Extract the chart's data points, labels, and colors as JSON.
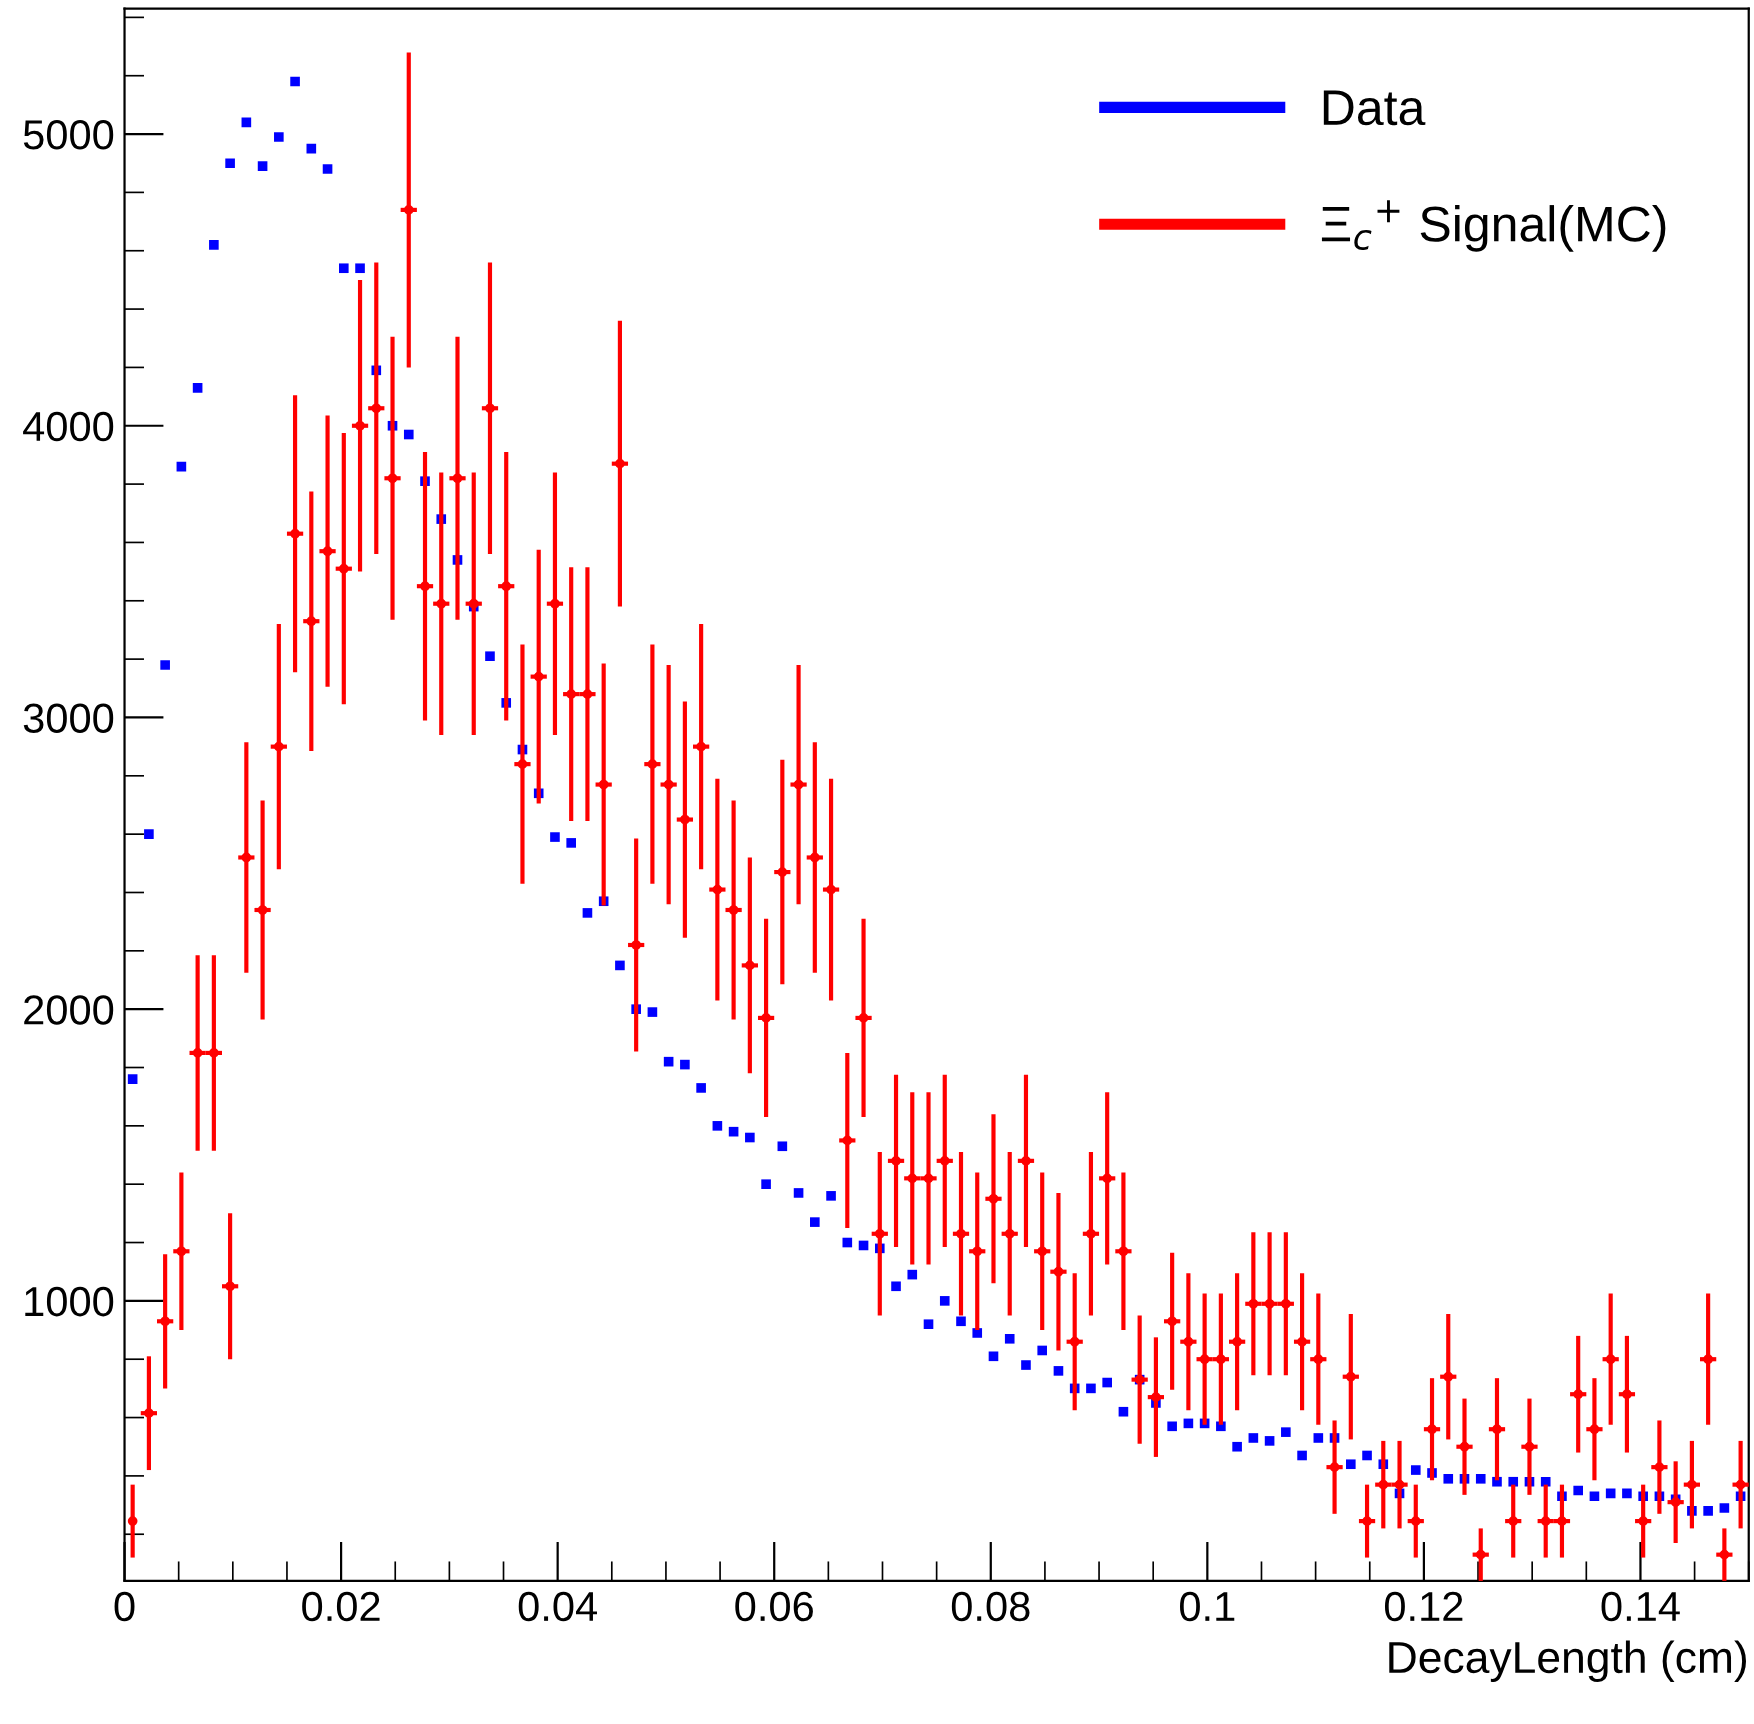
{
  "chart_data": {
    "type": "scatter",
    "xlabel": "DecayLength (cm)",
    "x": [
      0.00075,
      0.00225,
      0.00375,
      0.00525,
      0.00675,
      0.00825,
      0.00975,
      0.01125,
      0.01275,
      0.01425,
      0.01575,
      0.01725,
      0.01875,
      0.02025,
      0.02175,
      0.02325,
      0.02475,
      0.02625,
      0.02775,
      0.02925,
      0.03075,
      0.03225,
      0.03375,
      0.03525,
      0.03675,
      0.03825,
      0.03975,
      0.04125,
      0.04275,
      0.04425,
      0.04575,
      0.04725,
      0.04875,
      0.05025,
      0.05175,
      0.05325,
      0.05475,
      0.05625,
      0.05775,
      0.05925,
      0.06075,
      0.06225,
      0.06375,
      0.06525,
      0.06675,
      0.06825,
      0.06975,
      0.07125,
      0.07275,
      0.07425,
      0.07575,
      0.07725,
      0.07875,
      0.08025,
      0.08175,
      0.08325,
      0.08475,
      0.08625,
      0.08775,
      0.08925,
      0.09075,
      0.09225,
      0.09375,
      0.09525,
      0.09675,
      0.09825,
      0.09975,
      0.10125,
      0.10275,
      0.10425,
      0.10575,
      0.10725,
      0.10875,
      0.11025,
      0.11175,
      0.11325,
      0.11475,
      0.11625,
      0.11775,
      0.11925,
      0.12075,
      0.12225,
      0.12375,
      0.12525,
      0.12675,
      0.12825,
      0.12975,
      0.13125,
      0.13275,
      0.13425,
      0.13575,
      0.13725,
      0.13875,
      0.14025,
      0.14175,
      0.14325,
      0.14475,
      0.14625,
      0.14775,
      0.14925
    ],
    "series": [
      {
        "name": "Data",
        "color": "#0000ff",
        "marker": "square",
        "values": [
          1760,
          2600,
          3180,
          3860,
          4130,
          4620,
          4900,
          5040,
          4890,
          4990,
          5180,
          4950,
          4880,
          4540,
          4540,
          4190,
          4000,
          3970,
          3810,
          3680,
          3540,
          3380,
          3210,
          3050,
          2890,
          2740,
          2590,
          2570,
          2330,
          2370,
          2150,
          2000,
          1990,
          1820,
          1810,
          1730,
          1600,
          1580,
          1560,
          1400,
          1530,
          1370,
          1270,
          1360,
          1200,
          1190,
          1180,
          1050,
          1090,
          920,
          1000,
          930,
          890,
          810,
          870,
          780,
          830,
          760,
          700,
          700,
          720,
          620,
          730,
          650,
          570,
          580,
          580,
          570,
          500,
          530,
          520,
          550,
          470,
          530,
          530,
          440,
          470,
          440,
          340,
          420,
          410,
          390,
          390,
          390,
          380,
          380,
          380,
          380,
          330,
          350,
          330,
          340,
          340,
          330,
          330,
          320,
          280,
          280,
          290,
          330
        ]
      },
      {
        "name": "Ξ$_{c}$$^{+}$ Signal(MC)",
        "color": "#ff0000",
        "marker": "circle",
        "values": [
          245,
          615,
          930,
          1170,
          1850,
          1850,
          1050,
          2520,
          2340,
          2900,
          3630,
          3330,
          3570,
          3510,
          4000,
          4060,
          3820,
          4740,
          3450,
          3390,
          3820,
          3390,
          4060,
          3450,
          2840,
          3140,
          3390,
          3080,
          3080,
          2770,
          3870,
          2220,
          2840,
          2770,
          2650,
          2900,
          2410,
          2340,
          2150,
          1970,
          2470,
          2770,
          2520,
          2410,
          1550,
          1970,
          1230,
          1480,
          1420,
          1420,
          1480,
          1230,
          1170,
          1350,
          1230,
          1480,
          1170,
          1100,
          860,
          1230,
          1420,
          1170,
          730,
          670,
          930,
          860,
          800,
          800,
          860,
          990,
          990,
          990,
          860,
          800,
          430,
          740,
          245,
          370,
          370,
          245,
          560,
          740,
          500,
          130,
          560,
          245,
          500,
          245,
          245,
          680,
          560,
          800,
          680,
          245,
          430,
          310,
          370,
          800,
          130,
          370
        ],
        "errors": [
          125,
          195,
          230,
          270,
          335,
          335,
          250,
          395,
          375,
          420,
          475,
          445,
          465,
          465,
          500,
          500,
          485,
          540,
          460,
          450,
          485,
          450,
          500,
          460,
          410,
          435,
          450,
          435,
          435,
          415,
          490,
          365,
          410,
          410,
          405,
          420,
          380,
          375,
          370,
          340,
          385,
          410,
          395,
          380,
          300,
          340,
          280,
          295,
          295,
          295,
          295,
          280,
          270,
          290,
          280,
          295,
          270,
          270,
          235,
          280,
          295,
          270,
          220,
          205,
          235,
          235,
          225,
          225,
          235,
          245,
          245,
          245,
          235,
          225,
          160,
          215,
          125,
          150,
          150,
          125,
          175,
          215,
          165,
          90,
          175,
          125,
          165,
          125,
          125,
          200,
          175,
          225,
          200,
          125,
          160,
          140,
          150,
          225,
          90,
          150
        ],
        "xerrors": [
          null,
          0.00075,
          0.00075,
          0.00075,
          0.00075,
          0.00075,
          0.00075,
          0.00075,
          0.00075,
          0.00075,
          0.00075,
          0.00075,
          0.00075,
          0.00075,
          0.00075,
          0.00075,
          0.00075,
          0.00075,
          0.00075,
          0.00075,
          0.00075,
          0.00075,
          0.00075,
          0.00075,
          0.00075,
          0.00075,
          0.00075,
          0.00075,
          0.00075,
          0.00075,
          0.00075,
          0.00075,
          0.00075,
          0.00075,
          0.00075,
          0.00075,
          0.00075,
          0.00075,
          0.00075,
          0.00075,
          0.00075,
          0.00075,
          0.00075,
          0.00075,
          0.00075,
          0.00075,
          0.00075,
          0.00075,
          0.00075,
          0.00075,
          0.00075,
          0.00075,
          0.00075,
          0.00075,
          0.00075,
          0.00075,
          0.00075,
          0.00075,
          0.00075,
          0.00075,
          0.00075,
          0.00075,
          0.00075,
          0.00075,
          0.00075,
          0.00075,
          0.00075,
          0.00075,
          0.00075,
          0.00075,
          0.00075,
          0.00075,
          0.00075,
          0.00075,
          0.00075,
          0.00075,
          0.00075,
          0.00075,
          0.00075,
          0.00075,
          0.00075,
          0.00075,
          0.00075,
          0.00075,
          0.00075,
          0.00075,
          0.00075,
          0.00075,
          0.00075,
          0.00075,
          0.00075,
          0.00075,
          0.00075,
          0.00075,
          0.00075,
          0.00075,
          0.00075,
          0.00075,
          0.00075,
          0.00075
        ]
      }
    ],
    "xlim": [
      0,
      0.15
    ],
    "ylim": [
      40,
      5430
    ],
    "xticks": [
      0,
      0.02,
      0.04,
      0.06,
      0.08,
      0.1,
      0.12,
      0.14
    ],
    "yticks": [
      1000,
      2000,
      3000,
      4000,
      5000
    ],
    "grid": false,
    "legend": "top right"
  }
}
